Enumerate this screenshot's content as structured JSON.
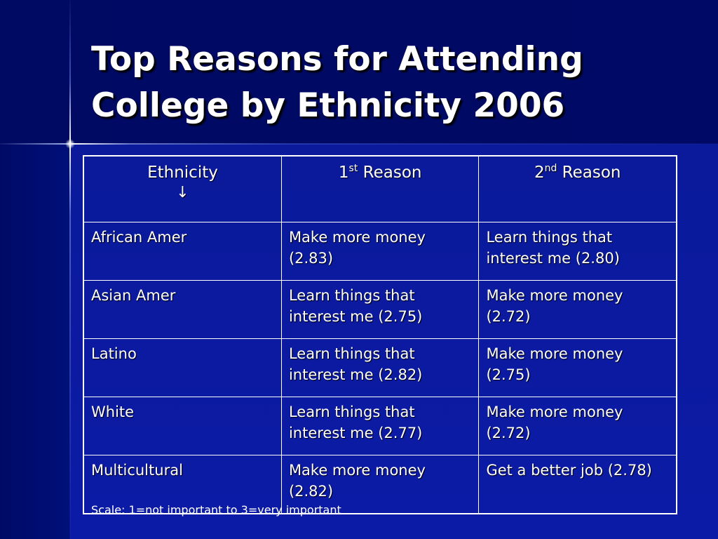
{
  "slide": {
    "title": "Top Reasons for Attending College by Ethnicity 2006",
    "footnote": "Scale: 1=not important to 3=very important"
  },
  "table": {
    "headers": {
      "col1": "Ethnicity",
      "col1_arrow": "↓",
      "col2_num": "1",
      "col2_sup": "st",
      "col2_text": " Reason",
      "col3_num": "2",
      "col3_sup": "nd",
      "col3_text": " Reason"
    },
    "rows": [
      {
        "ethnicity": "African Amer",
        "first": "Make more money (2.83)",
        "second": "Learn things that interest me (2.80)"
      },
      {
        "ethnicity": "Asian Amer",
        "first": "Learn things that interest me (2.75)",
        "second": "Make more money (2.72)"
      },
      {
        "ethnicity": "Latino",
        "first": "Learn things that interest me (2.82)",
        "second": "Make more money (2.75)"
      },
      {
        "ethnicity": "White",
        "first": "Learn things that interest me (2.77)",
        "second": "Make more money (2.72)"
      },
      {
        "ethnicity": "Multicultural",
        "first": "Make more money (2.82)",
        "second": "Get a better job (2.78)"
      }
    ]
  },
  "colors": {
    "background": "#000c66",
    "panel": "#0c1ba6",
    "text": "#ffffff",
    "grid": "#ffffff"
  }
}
